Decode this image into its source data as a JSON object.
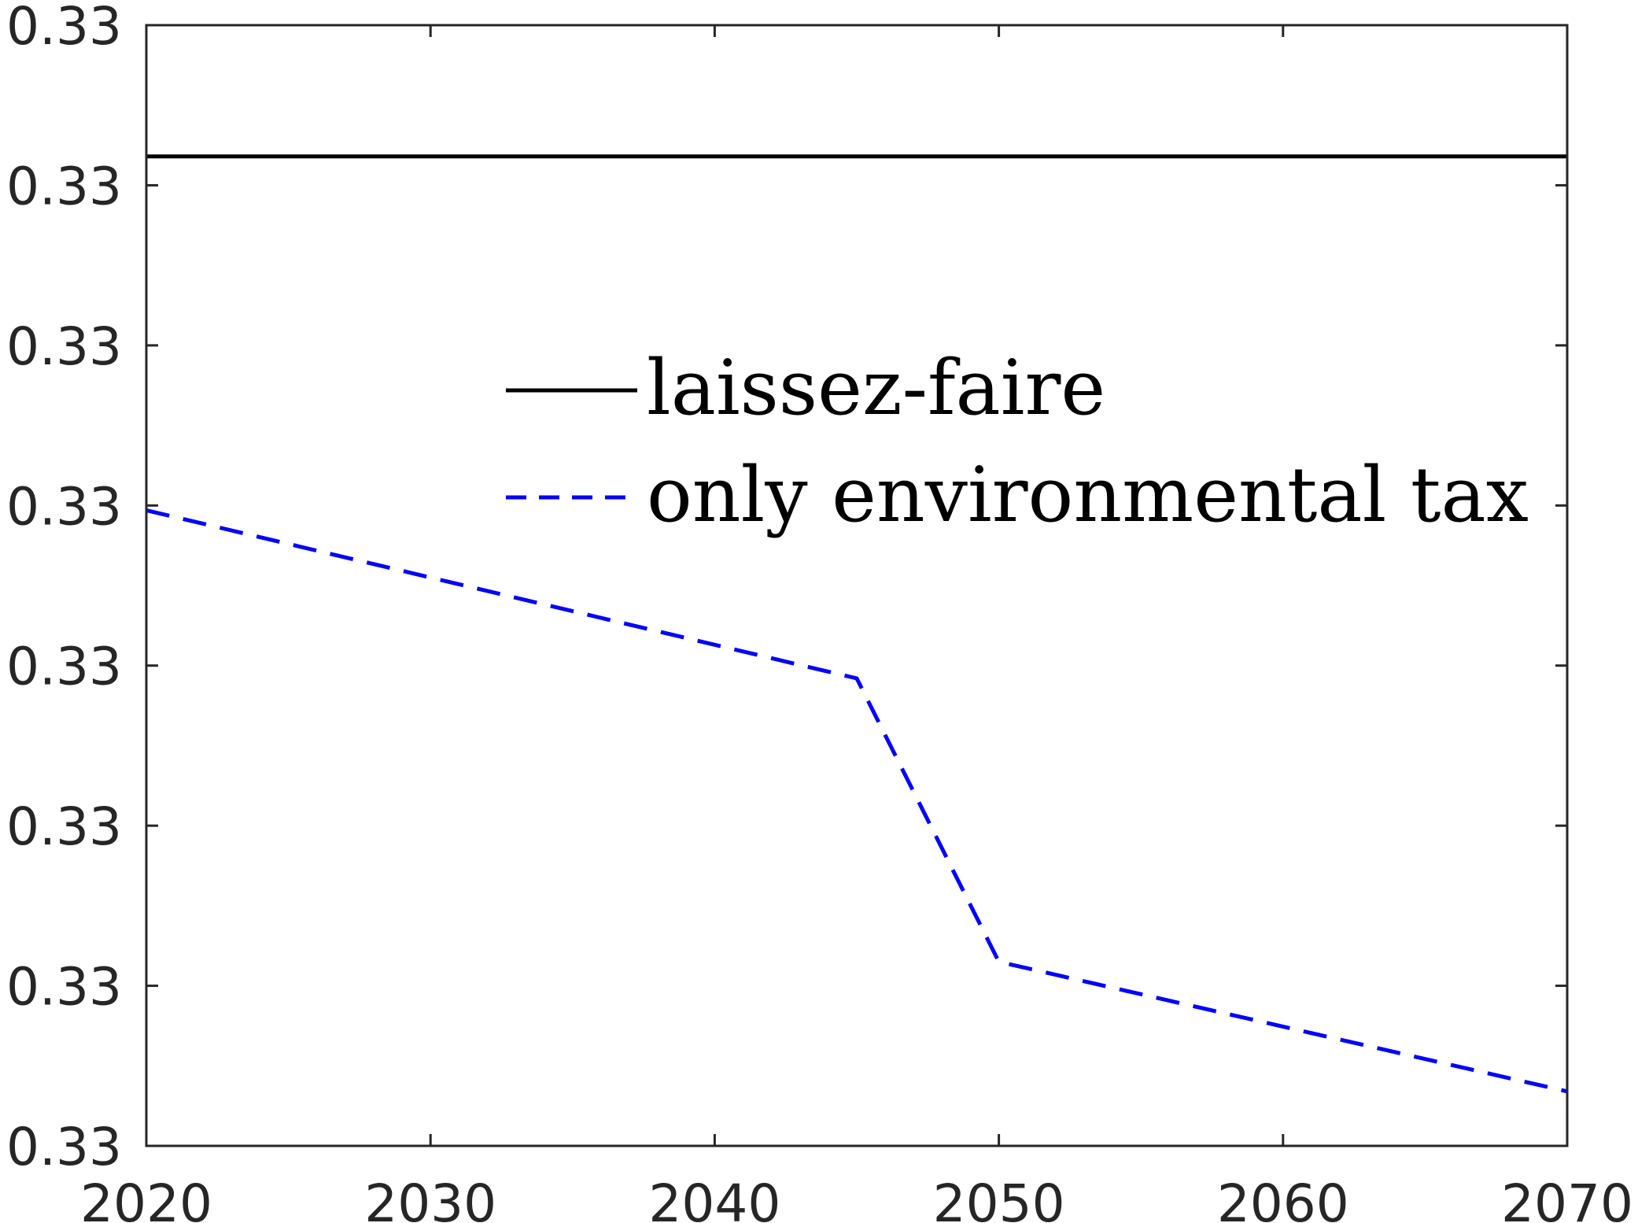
{
  "chart_data": {
    "type": "line",
    "title": "",
    "xlabel": "",
    "ylabel": "",
    "x_ticks": [
      "2020",
      "2030",
      "2040",
      "2050",
      "2060",
      "2070"
    ],
    "y_ticks": [
      "0.33",
      "0.33",
      "0.33",
      "0.33",
      "0.33",
      "0.33",
      "0.33",
      "0.33"
    ],
    "xlim": [
      2020,
      2070
    ],
    "ylim": [
      0,
      7
    ],
    "y_axis_note": "tick values all print as 0.33; plotted y values are read on an index scale of the 8 tick positions (0 = bottom tick, 7 = top tick)",
    "grid": false,
    "legend_position": "center",
    "series": [
      {
        "name": "laissez-faire",
        "color": "#000000",
        "line_style": "solid",
        "x": [
          2020,
          2070
        ],
        "y": [
          6.18,
          6.18
        ]
      },
      {
        "name": "only environmental tax",
        "color": "#0000ff",
        "line_style": "dashed",
        "x": [
          2020,
          2045,
          2050,
          2070
        ],
        "y": [
          3.97,
          2.92,
          1.15,
          0.34
        ]
      }
    ]
  }
}
